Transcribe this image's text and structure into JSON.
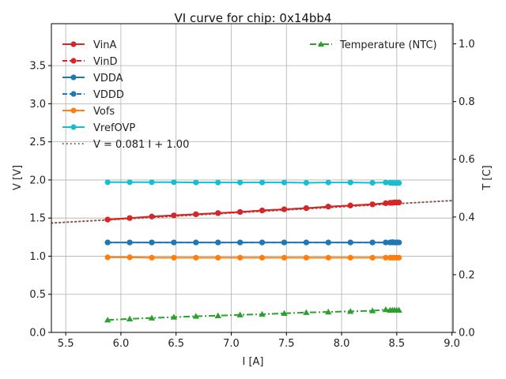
{
  "chart_data": {
    "type": "line",
    "title": "VI curve for chip: 0x14bb4",
    "xlabel": "I [A]",
    "ylabel": "V [V]",
    "y2label": "T [C]",
    "xlim": [
      5.37,
      9.01
    ],
    "ylim": [
      0.0,
      4.05
    ],
    "y2lim": [
      0.0,
      1.07
    ],
    "xticks": [
      "5.5",
      "6.0",
      "6.5",
      "7.0",
      "7.5",
      "8.0",
      "8.5",
      "9.0"
    ],
    "xtick_values": [
      5.5,
      6.0,
      6.5,
      7.0,
      7.5,
      8.0,
      8.5,
      9.0
    ],
    "yticks": [
      "0.0",
      "0.5",
      "1.0",
      "1.5",
      "2.0",
      "2.5",
      "3.0",
      "3.5"
    ],
    "ytick_values": [
      0.0,
      0.5,
      1.0,
      1.5,
      2.0,
      2.5,
      3.0,
      3.5
    ],
    "y2ticks": [
      "0.0",
      "0.2",
      "0.4",
      "0.6",
      "0.8",
      "1.0"
    ],
    "y2tick_values": [
      0.0,
      0.2,
      0.4,
      0.6,
      0.8,
      1.0
    ],
    "grid": true,
    "legend_left_position": "top-left",
    "legend_right_position": "top-right",
    "x": [
      5.88,
      6.08,
      6.28,
      6.48,
      6.68,
      6.88,
      7.08,
      7.28,
      7.48,
      7.68,
      7.88,
      8.08,
      8.28,
      8.4,
      8.44,
      8.46,
      8.48,
      8.5,
      8.52
    ],
    "series": [
      {
        "name": "VinA",
        "axis": "left",
        "color": "#d62728",
        "linestyle": "solid",
        "marker": "circle",
        "values": [
          1.48,
          1.5,
          1.52,
          1.535,
          1.55,
          1.565,
          1.58,
          1.6,
          1.615,
          1.63,
          1.65,
          1.665,
          1.68,
          1.695,
          1.7,
          1.7,
          1.705,
          1.705,
          1.705
        ]
      },
      {
        "name": "VinD",
        "axis": "left",
        "color": "#d62728",
        "linestyle": "dashed",
        "marker": "circle",
        "values": [
          1.48,
          1.5,
          1.52,
          1.535,
          1.55,
          1.565,
          1.58,
          1.6,
          1.615,
          1.63,
          1.65,
          1.665,
          1.68,
          1.695,
          1.7,
          1.7,
          1.705,
          1.705,
          1.705
        ]
      },
      {
        "name": "VDDA",
        "axis": "left",
        "color": "#1f77b4",
        "linestyle": "solid",
        "marker": "circle",
        "values": [
          1.18,
          1.18,
          1.18,
          1.18,
          1.18,
          1.18,
          1.18,
          1.18,
          1.18,
          1.18,
          1.18,
          1.18,
          1.18,
          1.18,
          1.18,
          1.185,
          1.18,
          1.18,
          1.18
        ]
      },
      {
        "name": "VDDD",
        "axis": "left",
        "color": "#1f77b4",
        "linestyle": "dashed",
        "marker": "circle",
        "values": [
          1.18,
          1.18,
          1.18,
          1.18,
          1.18,
          1.18,
          1.18,
          1.18,
          1.18,
          1.18,
          1.18,
          1.18,
          1.18,
          1.18,
          1.18,
          1.18,
          1.18,
          1.18,
          1.18
        ]
      },
      {
        "name": "Vofs",
        "axis": "left",
        "color": "#ff7f0e",
        "linestyle": "solid",
        "marker": "circle",
        "values": [
          0.985,
          0.985,
          0.98,
          0.98,
          0.98,
          0.98,
          0.98,
          0.98,
          0.98,
          0.98,
          0.98,
          0.98,
          0.98,
          0.98,
          0.98,
          0.98,
          0.98,
          0.98,
          0.98
        ]
      },
      {
        "name": "VrefOVP",
        "axis": "left",
        "color": "#17becf",
        "linestyle": "solid",
        "marker": "circle",
        "values": [
          1.97,
          1.97,
          1.97,
          1.97,
          1.967,
          1.967,
          1.967,
          1.967,
          1.967,
          1.963,
          1.967,
          1.967,
          1.963,
          1.967,
          1.963,
          1.96,
          1.96,
          1.96,
          1.96
        ]
      },
      {
        "name": "V = 0.081 I + 1.00",
        "axis": "left",
        "color": "#8c564b",
        "linestyle": "dotted",
        "marker": "none",
        "fit": {
          "slope": 0.081,
          "intercept": 1.0
        }
      },
      {
        "name": "Temperature (NTC)",
        "axis": "right",
        "color": "#2ca02c",
        "linestyle": "dashdot",
        "marker": "triangle",
        "values": [
          0.043,
          0.047,
          0.05,
          0.053,
          0.056,
          0.058,
          0.061,
          0.063,
          0.066,
          0.069,
          0.071,
          0.073,
          0.075,
          0.079,
          0.077,
          0.077,
          0.077,
          0.077,
          0.077
        ]
      }
    ]
  }
}
